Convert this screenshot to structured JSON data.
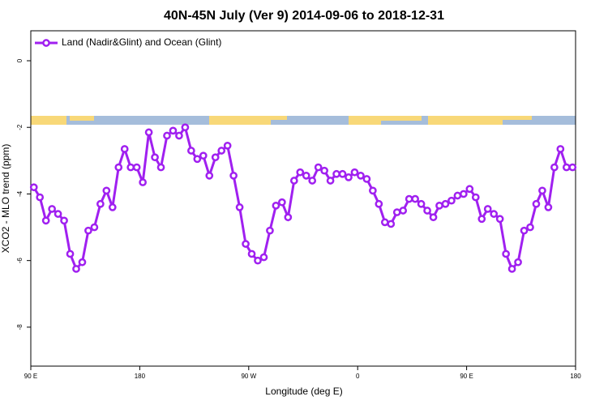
{
  "chart_data": {
    "type": "line",
    "title": "40N-45N July (Ver 9)   2014-09-06 to 2018-12-31",
    "x_label": "Longitude (deg E)",
    "y_label": "XCO2 - MLO trend (ppm)",
    "legend": "top-left",
    "xlim": [
      90,
      540
    ],
    "ylim": [
      -9.17,
      0.9
    ],
    "xticks": [
      {
        "value": 90,
        "label": "90 E"
      },
      180,
      {
        "value": 270,
        "label": "90 W"
      },
      {
        "value": 360,
        "label": "0"
      },
      {
        "value": 450,
        "label": "90 E"
      },
      {
        "value": 540,
        "label": "180"
      }
    ],
    "yticks": [
      -8,
      -6,
      -4,
      -2,
      0
    ],
    "x": [
      92.5,
      97.5,
      102.5,
      107.5,
      112.5,
      117.5,
      122.5,
      127.5,
      132.5,
      137.5,
      142.5,
      147.5,
      152.5,
      157.5,
      162.5,
      167.5,
      172.5,
      177.5,
      182.5,
      187.5,
      192.5,
      197.5,
      202.5,
      207.5,
      212.5,
      217.5,
      222.5,
      227.5,
      232.5,
      237.5,
      242.5,
      247.5,
      252.5,
      257.5,
      262.5,
      267.5,
      272.5,
      277.5,
      282.5,
      287.5,
      292.5,
      297.5,
      302.5,
      307.5,
      312.5,
      317.5,
      322.5,
      327.5,
      332.5,
      337.5,
      342.5,
      347.5,
      352.5,
      357.5,
      362.5,
      367.5,
      372.5,
      377.5,
      382.5,
      387.5,
      392.5,
      397.5,
      402.5,
      407.5,
      412.5,
      417.5,
      422.5,
      427.5,
      432.5,
      437.5,
      442.5,
      447.5,
      452.5,
      457.5,
      462.5,
      467.5,
      472.5,
      477.5,
      482.5,
      487.5,
      492.5,
      497.5,
      502.5,
      507.5,
      512.5,
      517.5,
      522.5,
      527.5,
      532.5,
      537.5
    ],
    "series": [
      {
        "name": "Land (Nadir&Glint) and Ocean (Glint)",
        "color": "#a020f0",
        "values": [
          -3.8,
          -4.1,
          -4.8,
          -4.45,
          -4.6,
          -4.8,
          -5.8,
          -6.25,
          -6.05,
          -5.1,
          -5.0,
          -4.3,
          -3.9,
          -4.4,
          -3.2,
          -2.65,
          -3.2,
          -3.2,
          -3.65,
          -2.15,
          -2.9,
          -3.2,
          -2.25,
          -2.1,
          -2.25,
          -2.0,
          -2.7,
          -2.95,
          -2.85,
          -3.45,
          -2.9,
          -2.7,
          -2.55,
          -3.45,
          -4.4,
          -5.5,
          -5.8,
          -6.0,
          -5.9,
          -5.1,
          -4.35,
          -4.25,
          -4.7,
          -3.6,
          -3.35,
          -3.45,
          -3.6,
          -3.2,
          -3.3,
          -3.6,
          -3.4,
          -3.4,
          -3.5,
          -3.35,
          -3.45,
          -3.55,
          -3.9,
          -4.3,
          -4.85,
          -4.9,
          -4.55,
          -4.5,
          -4.15,
          -4.15,
          -4.3,
          -4.5,
          -4.7,
          -4.35,
          -4.3,
          -4.2,
          -4.05,
          -4.0,
          -3.85,
          -4.1,
          -4.75,
          -4.45,
          -4.6,
          -4.75,
          -5.8,
          -6.25,
          -6.05,
          -5.1,
          -5.0,
          -4.3,
          -3.9,
          -4.4,
          -3.2,
          -2.65,
          -3.2,
          -3.2
        ]
      }
    ]
  }
}
